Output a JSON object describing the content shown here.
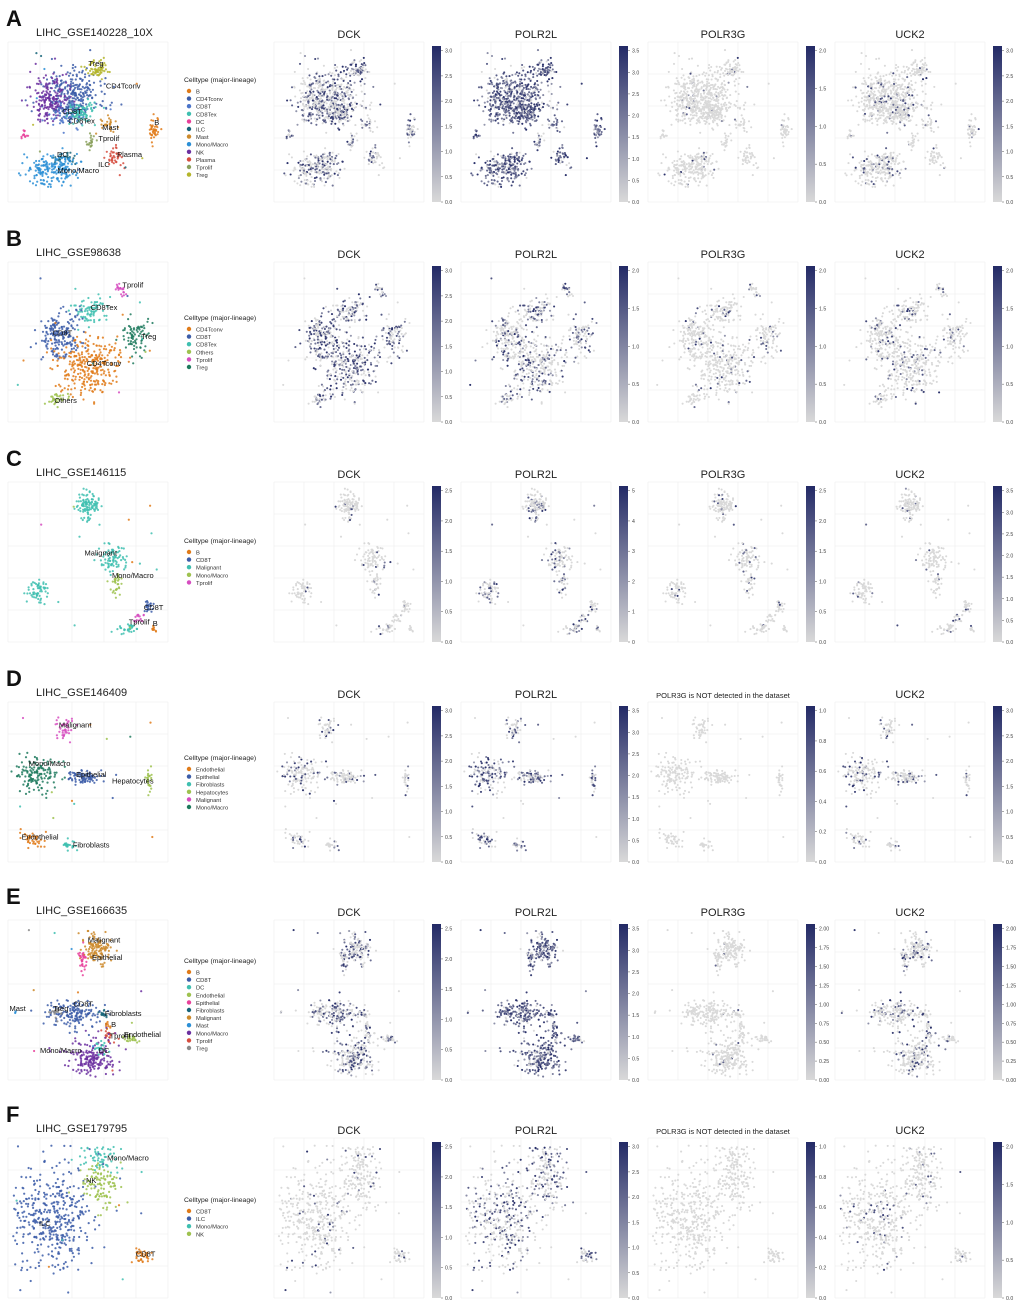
{
  "figure": {
    "legend_title": "Celltype (major-lineage)",
    "colorbar_colors": {
      "low": "#d9d9d9",
      "high": "#232a66"
    },
    "panels": [
      {
        "letter": "A",
        "dataset": "LIHC_GSE140228_10X",
        "legend": [
          {
            "label": "B",
            "color": "#e07b1a"
          },
          {
            "label": "CD4Tconv",
            "color": "#3b5ca8"
          },
          {
            "label": "CD8T",
            "color": "#4b74c9"
          },
          {
            "label": "CD8Tex",
            "color": "#3fbfb0"
          },
          {
            "label": "DC",
            "color": "#e8409a"
          },
          {
            "label": "ILC",
            "color": "#17657a"
          },
          {
            "label": "Mast",
            "color": "#cc8a2c"
          },
          {
            "label": "Mono/Macro",
            "color": "#2b8fd6"
          },
          {
            "label": "NK",
            "color": "#6b2fa0"
          },
          {
            "label": "Plasma",
            "color": "#d64c3e"
          },
          {
            "label": "Tprolif",
            "color": "#8aa05c"
          },
          {
            "label": "Treg",
            "color": "#b4b52a"
          }
        ],
        "cluster_labels": [
          "Treg",
          "CD4Tconv",
          "CD8T",
          "CD8Tex",
          "Mast",
          "B",
          "Tprolif",
          "Plasma",
          "DC",
          "ILC",
          "Mono/Macro"
        ],
        "genes": [
          {
            "name": "DCK",
            "max": 3.0,
            "ticks": [
              "0.0",
              "0.5",
              "1.0",
              "1.5",
              "2.0",
              "2.5",
              "3.0"
            ]
          },
          {
            "name": "POLR2L",
            "max": 3.5,
            "ticks": [
              "0.0",
              "0.5",
              "1.0",
              "1.5",
              "2.0",
              "2.5",
              "3.0",
              "3.5"
            ]
          },
          {
            "name": "POLR3G",
            "max": 2.0,
            "ticks": [
              "0.0",
              "0.5",
              "1.0",
              "1.5",
              "2.0"
            ]
          },
          {
            "name": "UCK2",
            "max": 3.0,
            "ticks": [
              "0.0",
              "0.5",
              "1.0",
              "1.5",
              "2.0",
              "2.5",
              "3.0"
            ]
          }
        ]
      },
      {
        "letter": "B",
        "dataset": "LIHC_GSE98638",
        "legend": [
          {
            "label": "CD4Tconv",
            "color": "#e07b1a"
          },
          {
            "label": "CD8T",
            "color": "#3b5ca8"
          },
          {
            "label": "CD8Tex",
            "color": "#3fbfb0"
          },
          {
            "label": "Others",
            "color": "#9ec24f"
          },
          {
            "label": "Tprolif",
            "color": "#d64cc0"
          },
          {
            "label": "Treg",
            "color": "#1e7a5e"
          }
        ],
        "cluster_labels": [
          "Tprolif",
          "CD8Tex",
          "CD8T",
          "Treg",
          "CD4Tconv",
          "Others"
        ],
        "genes": [
          {
            "name": "DCK",
            "max": 3.0,
            "ticks": [
              "0.0",
              "0.5",
              "1.0",
              "1.5",
              "2.0",
              "2.5",
              "3.0"
            ]
          },
          {
            "name": "POLR2L",
            "max": 2.0,
            "ticks": [
              "0.0",
              "0.5",
              "1.0",
              "1.5",
              "2.0"
            ]
          },
          {
            "name": "POLR3G",
            "max": 2.0,
            "ticks": [
              "0.0",
              "0.5",
              "1.0",
              "1.5",
              "2.0"
            ]
          },
          {
            "name": "UCK2",
            "max": 2.0,
            "ticks": [
              "0.0",
              "0.5",
              "1.0",
              "1.5",
              "2.0"
            ]
          }
        ]
      },
      {
        "letter": "C",
        "dataset": "LIHC_GSE146115",
        "legend": [
          {
            "label": "B",
            "color": "#e07b1a"
          },
          {
            "label": "CD8T",
            "color": "#3b5ca8"
          },
          {
            "label": "Malignant",
            "color": "#3fbfb0"
          },
          {
            "label": "Mono/Macro",
            "color": "#9ec24f"
          },
          {
            "label": "Tprolif",
            "color": "#d64cc0"
          }
        ],
        "cluster_labels": [
          "Malignant",
          "Mono/Macro",
          "CD8T",
          "Tprolif",
          "B"
        ],
        "genes": [
          {
            "name": "DCK",
            "max": 2.5,
            "ticks": [
              "0.0",
              "0.5",
              "1.0",
              "1.5",
              "2.0",
              "2.5"
            ]
          },
          {
            "name": "POLR2L",
            "max": 5.0,
            "ticks": [
              "0",
              "1",
              "2",
              "3",
              "4",
              "5"
            ]
          },
          {
            "name": "POLR3G",
            "max": 2.5,
            "ticks": [
              "0.0",
              "0.5",
              "1.0",
              "1.5",
              "2.0",
              "2.5"
            ]
          },
          {
            "name": "UCK2",
            "max": 3.5,
            "ticks": [
              "0.0",
              "0.5",
              "1.0",
              "1.5",
              "2.0",
              "2.5",
              "3.0",
              "3.5"
            ]
          }
        ]
      },
      {
        "letter": "D",
        "dataset": "LIHC_GSE146409",
        "legend": [
          {
            "label": "Endothelial",
            "color": "#e07b1a"
          },
          {
            "label": "Epithelial",
            "color": "#3b5ca8"
          },
          {
            "label": "Fibroblasts",
            "color": "#3fbfb0"
          },
          {
            "label": "Hepatocytes",
            "color": "#9ec24f"
          },
          {
            "label": "Malignant",
            "color": "#d64cc0"
          },
          {
            "label": "Mono/Macro",
            "color": "#1e7a5e"
          }
        ],
        "cluster_labels": [
          "Malignant",
          "Mono/Macro",
          "Epithelial",
          "Hepatocytes",
          "Endothelial",
          "Fibroblasts"
        ],
        "genes": [
          {
            "name": "DCK",
            "max": 3.0,
            "ticks": [
              "0.0",
              "0.5",
              "1.0",
              "1.5",
              "2.0",
              "2.5",
              "3.0"
            ]
          },
          {
            "name": "POLR2L",
            "max": 3.5,
            "ticks": [
              "0.0",
              "0.5",
              "1.0",
              "1.5",
              "2.0",
              "2.5",
              "3.0",
              "3.5"
            ]
          },
          {
            "name": "POLR3G is NOT detected in the dataset",
            "max": 1.0,
            "ticks": [
              "0.0",
              "0.2",
              "0.4",
              "0.6",
              "0.8",
              "1.0"
            ],
            "small": true
          },
          {
            "name": "UCK2",
            "max": 3.0,
            "ticks": [
              "0.0",
              "0.5",
              "1.0",
              "1.5",
              "2.0",
              "2.5",
              "3.0"
            ]
          }
        ]
      },
      {
        "letter": "E",
        "dataset": "LIHC_GSE166635",
        "legend": [
          {
            "label": "B",
            "color": "#e07b1a"
          },
          {
            "label": "CD8T",
            "color": "#3b5ca8"
          },
          {
            "label": "DC",
            "color": "#3fbfb0"
          },
          {
            "label": "Endothelial",
            "color": "#9ec24f"
          },
          {
            "label": "Epithelial",
            "color": "#e8409a"
          },
          {
            "label": "Fibroblasts",
            "color": "#17657a"
          },
          {
            "label": "Malignant",
            "color": "#cc8a2c"
          },
          {
            "label": "Mast",
            "color": "#2b8fd6"
          },
          {
            "label": "Mono/Macro",
            "color": "#6b2fa0"
          },
          {
            "label": "Tprolif",
            "color": "#d64c3e"
          },
          {
            "label": "Treg",
            "color": "#8a8a8a"
          }
        ],
        "cluster_labels": [
          "Malignant",
          "Epithelial",
          "Mast",
          "Treg",
          "CD8T",
          "Fibroblasts",
          "B",
          "Tprolif",
          "Endothelial",
          "Mono/Macro",
          "DC"
        ],
        "genes": [
          {
            "name": "DCK",
            "max": 2.5,
            "ticks": [
              "0.0",
              "0.5",
              "1.0",
              "1.5",
              "2.0",
              "2.5"
            ]
          },
          {
            "name": "POLR2L",
            "max": 3.5,
            "ticks": [
              "0.0",
              "0.5",
              "1.0",
              "1.5",
              "2.0",
              "2.5",
              "3.0",
              "3.5"
            ]
          },
          {
            "name": "POLR3G",
            "max": 2.0,
            "ticks": [
              "0.00",
              "0.25",
              "0.50",
              "0.75",
              "1.00",
              "1.25",
              "1.50",
              "1.75",
              "2.00"
            ]
          },
          {
            "name": "UCK2",
            "max": 2.0,
            "ticks": [
              "0.00",
              "0.25",
              "0.50",
              "0.75",
              "1.00",
              "1.25",
              "1.50",
              "1.75",
              "2.00"
            ]
          }
        ]
      },
      {
        "letter": "F",
        "dataset": "LIHC_GSE179795",
        "legend": [
          {
            "label": "CD8T",
            "color": "#e07b1a"
          },
          {
            "label": "ILC",
            "color": "#3b5ca8"
          },
          {
            "label": "Mono/Macro",
            "color": "#3fbfb0"
          },
          {
            "label": "NK",
            "color": "#9ec24f"
          }
        ],
        "cluster_labels": [
          "Mono/Macro",
          "NK",
          "ILC",
          "CD8T"
        ],
        "genes": [
          {
            "name": "DCK",
            "max": 2.5,
            "ticks": [
              "0.0",
              "0.5",
              "1.0",
              "1.5",
              "2.0",
              "2.5"
            ]
          },
          {
            "name": "POLR2L",
            "max": 3.0,
            "ticks": [
              "0.0",
              "0.5",
              "1.0",
              "1.5",
              "2.0",
              "2.5",
              "3.0"
            ]
          },
          {
            "name": "POLR3G is NOT detected in the dataset",
            "max": 1.0,
            "ticks": [
              "0.0",
              "0.2",
              "0.4",
              "0.6",
              "0.8",
              "1.0"
            ],
            "small": true
          },
          {
            "name": "UCK2",
            "max": 2.0,
            "ticks": [
              "0.0",
              "0.5",
              "1.0",
              "1.5",
              "2.0"
            ]
          }
        ]
      }
    ]
  },
  "chart_data": {
    "type": "scatter",
    "panels": [
      "A",
      "B",
      "C",
      "D",
      "E",
      "F"
    ],
    "datasets": [
      "LIHC_GSE140228_10X",
      "LIHC_GSE98638",
      "LIHC_GSE146115",
      "LIHC_GSE146409",
      "LIHC_GSE166635",
      "LIHC_GSE179795"
    ],
    "genes_per_panel": [
      "DCK",
      "POLR2L",
      "POLR3G",
      "UCK2"
    ],
    "not_detected": [
      {
        "panel": "D",
        "gene": "POLR3G"
      },
      {
        "panel": "F",
        "gene": "POLR3G"
      }
    ],
    "grid": true,
    "legend_placement": "right of cluster plot"
  }
}
